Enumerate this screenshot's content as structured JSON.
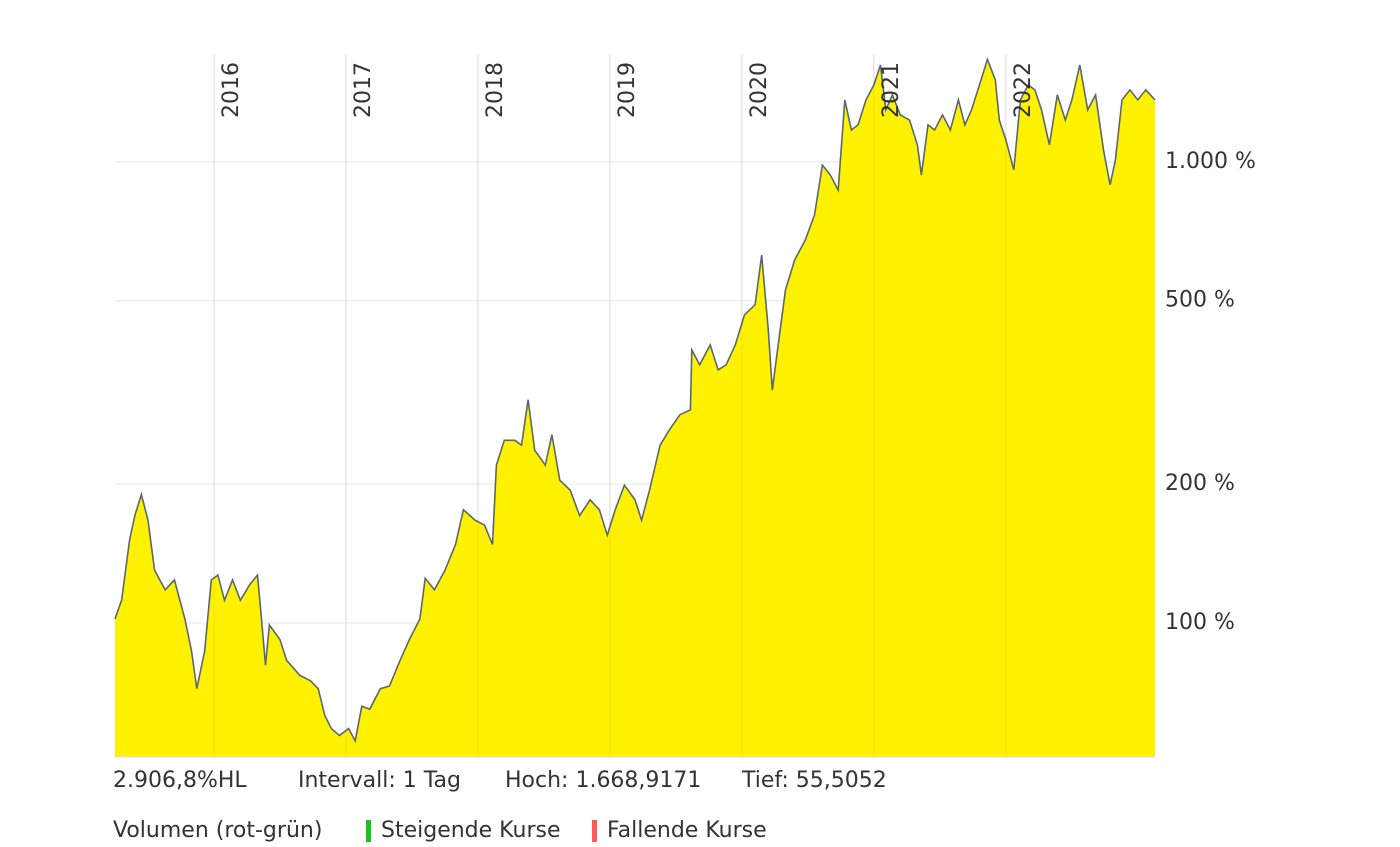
{
  "chart_data": {
    "type": "area",
    "log_scale": true,
    "grid": true,
    "color": "#fff200",
    "line_color": "#5b6770",
    "x": [
      2015.25,
      2015.3,
      2015.36,
      2015.4,
      2015.45,
      2015.5,
      2015.55,
      2015.63,
      2015.7,
      2015.78,
      2015.83,
      2015.87,
      2015.93,
      2015.98,
      2016.03,
      2016.08,
      2016.14,
      2016.2,
      2016.27,
      2016.33,
      2016.36,
      2016.39,
      2016.42,
      2016.5,
      2016.55,
      2016.65,
      2016.73,
      2016.79,
      2016.84,
      2016.89,
      2016.95,
      2017.02,
      2017.07,
      2017.12,
      2017.18,
      2017.26,
      2017.33,
      2017.41,
      2017.48,
      2017.56,
      2017.6,
      2017.67,
      2017.75,
      2017.83,
      2017.89,
      2017.98,
      2018.05,
      2018.11,
      2018.14,
      2018.2,
      2018.28,
      2018.33,
      2018.38,
      2018.43,
      2018.51,
      2018.56,
      2018.62,
      2018.7,
      2018.77,
      2018.85,
      2018.92,
      2018.98,
      2019.04,
      2019.11,
      2019.19,
      2019.24,
      2019.3,
      2019.38,
      2019.45,
      2019.53,
      2019.61,
      2019.62,
      2019.68,
      2019.76,
      2019.82,
      2019.88,
      2019.95,
      2020.02,
      2020.1,
      2020.15,
      2020.2,
      2020.23,
      2020.27,
      2020.33,
      2020.4,
      2020.48,
      2020.55,
      2020.61,
      2020.67,
      2020.73,
      2020.78,
      2020.83,
      2020.88,
      2020.94,
      2021.0,
      2021.05,
      2021.09,
      2021.14,
      2021.2,
      2021.27,
      2021.33,
      2021.36,
      2021.41,
      2021.46,
      2021.52,
      2021.58,
      2021.64,
      2021.69,
      2021.74,
      2021.8,
      2021.86,
      2021.92,
      2021.95,
      2022.0,
      2022.06,
      2022.11,
      2022.17,
      2022.22,
      2022.27,
      2022.33,
      2022.39,
      2022.45,
      2022.5,
      2022.56,
      2022.62,
      2022.68,
      2022.74,
      2022.79,
      2022.83,
      2022.88,
      2022.94,
      2023.0,
      2023.06,
      2023.13
    ],
    "values": [
      102,
      112,
      151,
      171,
      190,
      167,
      130,
      118,
      124,
      102,
      87,
      72,
      87,
      124,
      127,
      112,
      124,
      112,
      121,
      127,
      102,
      81,
      99,
      92,
      83,
      77,
      75,
      72,
      63,
      59,
      57,
      59,
      55.5,
      66,
      65,
      72,
      73,
      83,
      92,
      102,
      125,
      118,
      130,
      148,
      176,
      167,
      163,
      148,
      220,
      249,
      249,
      243,
      305,
      237,
      220,
      256,
      204,
      194,
      171,
      185,
      176,
      155,
      176,
      199,
      185,
      167,
      194,
      243,
      262,
      283,
      290,
      391,
      363,
      401,
      354,
      363,
      401,
      466,
      490,
      628,
      432,
      320,
      391,
      528,
      613,
      677,
      767,
      985,
      937,
      869,
      1363,
      1173,
      1203,
      1363,
      1469,
      1623,
      1297,
      1398,
      1265,
      1233,
      1089,
      937,
      1203,
      1173,
      1265,
      1173,
      1363,
      1203,
      1297,
      1469,
      1669,
      1507,
      1233,
      1116,
      961,
      1363,
      1469,
      1433,
      1297,
      1089,
      1398,
      1233,
      1363,
      1623,
      1297,
      1398,
      1062,
      892,
      1010,
      1363,
      1433,
      1363,
      1433,
      1363
    ],
    "xlim": [
      2015.25,
      2023.13
    ],
    "xticks": [
      2016,
      2017,
      2018,
      2019,
      2020,
      2021,
      2022
    ],
    "ylim": [
      51.2,
      1706
    ],
    "yticks": [
      {
        "value": 100,
        "label": "100 %"
      },
      {
        "value": 200,
        "label": "200 %"
      },
      {
        "value": 500,
        "label": "500 %"
      },
      {
        "value": 1000,
        "label": "1.000 %"
      }
    ],
    "stats": [
      "2.906,8%HL",
      "Intervall: 1 Tag",
      "Hoch: 1.668,9171",
      "Tief: 55,5052"
    ],
    "volume_legend": {
      "title": "Volumen (rot-grün)",
      "items": [
        {
          "label": "Steigende Kurse",
          "color": "#19c419"
        },
        {
          "label": "Fallende Kurse",
          "color": "#ff5a5a"
        }
      ]
    }
  }
}
